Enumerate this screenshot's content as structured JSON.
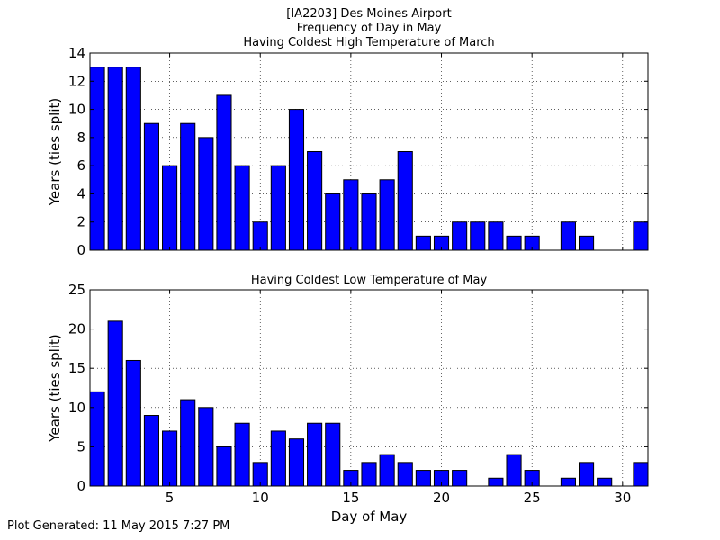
{
  "title_lines": [
    "[IA2203] Des Moines Airport",
    "Frequency of Day in May",
    "Having Coldest High Temperature of March"
  ],
  "footer": "Plot Generated: 11 May 2015 7:27 PM",
  "chart_data": [
    {
      "type": "bar",
      "title": "Having Coldest High Temperature of March",
      "xlabel": "",
      "ylabel": "Years (ties split)",
      "x": [
        1,
        2,
        3,
        4,
        5,
        6,
        7,
        8,
        9,
        10,
        11,
        12,
        13,
        14,
        15,
        16,
        17,
        18,
        19,
        20,
        21,
        22,
        23,
        24,
        25,
        26,
        27,
        28,
        29,
        30,
        31
      ],
      "values": [
        13,
        13,
        13,
        9,
        6,
        9,
        8,
        11,
        6,
        2,
        6,
        10,
        7,
        4,
        5,
        4,
        5,
        7,
        1,
        1,
        2,
        2,
        2,
        1,
        1,
        0,
        2,
        1,
        0,
        0,
        2
      ],
      "xlim": [
        0.6,
        31.4
      ],
      "ylim": [
        0,
        14
      ],
      "yticks": [
        0,
        2,
        4,
        6,
        8,
        10,
        12,
        14
      ],
      "xticks": [
        5,
        10,
        15,
        20,
        25,
        30
      ],
      "show_xtick_labels": false,
      "grid": true,
      "bar_color": "#0000ff"
    },
    {
      "type": "bar",
      "title": "Having Coldest Low Temperature of May",
      "xlabel": "Day of May",
      "ylabel": "Years (ties split)",
      "x": [
        1,
        2,
        3,
        4,
        5,
        6,
        7,
        8,
        9,
        10,
        11,
        12,
        13,
        14,
        15,
        16,
        17,
        18,
        19,
        20,
        21,
        22,
        23,
        24,
        25,
        26,
        27,
        28,
        29,
        30,
        31
      ],
      "values": [
        12,
        21,
        16,
        9,
        7,
        11,
        10,
        5,
        8,
        3,
        7,
        6,
        8,
        8,
        2,
        3,
        4,
        3,
        2,
        2,
        2,
        0,
        1,
        4,
        2,
        0,
        1,
        3,
        1,
        0,
        3
      ],
      "xlim": [
        0.6,
        31.4
      ],
      "ylim": [
        0,
        25
      ],
      "yticks": [
        0,
        5,
        10,
        15,
        20,
        25
      ],
      "xticks": [
        5,
        10,
        15,
        20,
        25,
        30
      ],
      "show_xtick_labels": true,
      "grid": true,
      "bar_color": "#0000ff"
    }
  ]
}
